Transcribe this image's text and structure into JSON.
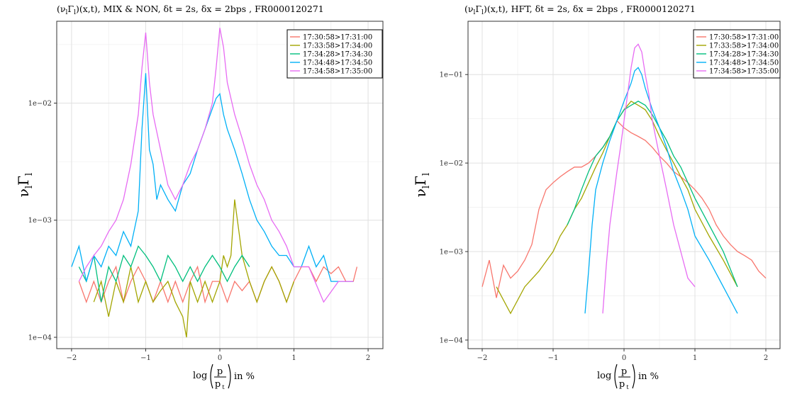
{
  "chart_data": [
    {
      "type": "line",
      "title": "(ν",
      "title_sub": "l",
      "title_mid": "Γ",
      "title_sub2": "l",
      "title_rest": ")(x,t), MIX & NON, δt = 2s, δx = 2bps , FR0000120271",
      "ylabel_main": "ν",
      "ylabel_sub": "l",
      "ylabel_mid": "Γ",
      "ylabel_sub2": "l",
      "xlabel_log": "log",
      "xlabel_num": "p",
      "xlabel_den": "p",
      "xlabel_den_sub": "t",
      "xlabel_unit": "in %",
      "y_scale": "log",
      "xlim": [
        -2.2,
        2.2
      ],
      "ylim": [
        8e-05,
        0.05
      ],
      "x_ticks": [
        -2,
        -1,
        0,
        1,
        2
      ],
      "x_tick_labels": [
        "−2",
        "−1",
        "0",
        "1",
        "2"
      ],
      "y_ticks": [
        0.0001,
        0.001,
        0.01,
        0.1
      ],
      "y_tick_labels": [
        "1e−04",
        "1e−03",
        "1e−02",
        "1e−01"
      ],
      "grid": true,
      "legend_position": "top-right",
      "series": [
        {
          "name": "17:30:58>17:31:00",
          "color": "#F8766D",
          "x": [
            -1.9,
            -1.8,
            -1.7,
            -1.6,
            -1.5,
            -1.4,
            -1.3,
            -1.2,
            -1.1,
            -1.0,
            -0.9,
            -0.8,
            -0.7,
            -0.6,
            -0.5,
            -0.4,
            -0.3,
            -0.2,
            -0.1,
            0.0,
            0.1,
            0.2,
            0.3,
            0.4,
            0.5,
            0.6,
            0.7,
            0.8,
            0.9,
            1.0,
            1.1,
            1.2,
            1.3,
            1.4,
            1.5,
            1.6,
            1.7,
            1.8,
            1.85
          ],
          "y": [
            0.0003,
            0.0002,
            0.0003,
            0.0002,
            0.0003,
            0.0004,
            0.0002,
            0.0003,
            0.0004,
            0.0003,
            0.0002,
            0.0003,
            0.0002,
            0.0003,
            0.0002,
            0.0003,
            0.0004,
            0.0002,
            0.0003,
            0.0003,
            0.0002,
            0.0003,
            0.00025,
            0.0003,
            0.0002,
            0.0003,
            0.0004,
            0.0003,
            0.0002,
            0.0003,
            0.0004,
            0.0004,
            0.0003,
            0.0004,
            0.00035,
            0.0004,
            0.0003,
            0.0003,
            0.0004
          ]
        },
        {
          "name": "17:33:58>17:34:00",
          "color": "#A3A500",
          "x": [
            -1.7,
            -1.6,
            -1.5,
            -1.4,
            -1.3,
            -1.2,
            -1.1,
            -1.0,
            -0.9,
            -0.8,
            -0.7,
            -0.6,
            -0.5,
            -0.45,
            -0.4,
            -0.3,
            -0.2,
            -0.1,
            0.0,
            0.05,
            0.1,
            0.15,
            0.2,
            0.3,
            0.4,
            0.5,
            0.6,
            0.7,
            0.8,
            0.9,
            1.0
          ],
          "y": [
            0.0002,
            0.0003,
            0.00015,
            0.0003,
            0.0002,
            0.0004,
            0.0002,
            0.0003,
            0.0002,
            0.00025,
            0.0003,
            0.0002,
            0.00015,
            0.0001,
            0.0003,
            0.0002,
            0.0003,
            0.0002,
            0.0003,
            0.0005,
            0.0004,
            0.0005,
            0.0015,
            0.0005,
            0.0003,
            0.0002,
            0.0003,
            0.0004,
            0.0003,
            0.0002,
            0.0003
          ]
        },
        {
          "name": "17:34:28>17:34:30",
          "color": "#00BF7D",
          "x": [
            -1.9,
            -1.8,
            -1.7,
            -1.6,
            -1.5,
            -1.4,
            -1.3,
            -1.2,
            -1.1,
            -1.0,
            -0.9,
            -0.8,
            -0.7,
            -0.6,
            -0.5,
            -0.4,
            -0.3,
            -0.2,
            -0.1,
            0.0,
            0.1,
            0.2,
            0.3,
            0.4
          ],
          "y": [
            0.0004,
            0.0003,
            0.0005,
            0.0002,
            0.0004,
            0.0003,
            0.0005,
            0.0004,
            0.0006,
            0.0005,
            0.0004,
            0.0003,
            0.0005,
            0.0004,
            0.0003,
            0.0004,
            0.0003,
            0.0004,
            0.0005,
            0.0004,
            0.0003,
            0.0004,
            0.0005,
            0.0004
          ]
        },
        {
          "name": "17:34:48>17:34:50",
          "color": "#00B0F6",
          "x": [
            -2.0,
            -1.9,
            -1.8,
            -1.7,
            -1.6,
            -1.5,
            -1.4,
            -1.3,
            -1.2,
            -1.1,
            -1.05,
            -1.0,
            -0.95,
            -0.9,
            -0.85,
            -0.8,
            -0.7,
            -0.6,
            -0.5,
            -0.4,
            -0.3,
            -0.2,
            -0.1,
            -0.05,
            0.0,
            0.05,
            0.1,
            0.2,
            0.3,
            0.4,
            0.5,
            0.6,
            0.7,
            0.8,
            0.9,
            1.0,
            1.1,
            1.2,
            1.3,
            1.4,
            1.5,
            1.6,
            1.7,
            1.8
          ],
          "y": [
            0.0004,
            0.0006,
            0.0003,
            0.0005,
            0.0004,
            0.0006,
            0.0005,
            0.0008,
            0.0006,
            0.0012,
            0.006,
            0.018,
            0.004,
            0.003,
            0.0015,
            0.002,
            0.0015,
            0.0012,
            0.002,
            0.0025,
            0.004,
            0.006,
            0.009,
            0.011,
            0.012,
            0.008,
            0.006,
            0.004,
            0.0025,
            0.0015,
            0.001,
            0.0008,
            0.0006,
            0.0005,
            0.0005,
            0.0004,
            0.0004,
            0.0006,
            0.0004,
            0.0005,
            0.0003,
            0.0003,
            0.0003,
            0.0003
          ]
        },
        {
          "name": "17:34:58>17:35:00",
          "color": "#E76BF3",
          "x": [
            -1.9,
            -1.8,
            -1.7,
            -1.6,
            -1.5,
            -1.4,
            -1.3,
            -1.2,
            -1.1,
            -1.05,
            -1.0,
            -0.95,
            -0.9,
            -0.8,
            -0.7,
            -0.6,
            -0.5,
            -0.4,
            -0.3,
            -0.2,
            -0.1,
            -0.05,
            0.0,
            0.05,
            0.1,
            0.2,
            0.3,
            0.4,
            0.5,
            0.6,
            0.7,
            0.8,
            0.9,
            1.0,
            1.2,
            1.4,
            1.6,
            1.8
          ],
          "y": [
            0.0003,
            0.0004,
            0.0005,
            0.0006,
            0.0008,
            0.001,
            0.0015,
            0.003,
            0.008,
            0.02,
            0.04,
            0.015,
            0.008,
            0.004,
            0.002,
            0.0015,
            0.002,
            0.003,
            0.004,
            0.006,
            0.01,
            0.02,
            0.044,
            0.03,
            0.015,
            0.008,
            0.005,
            0.003,
            0.002,
            0.0015,
            0.001,
            0.0008,
            0.0006,
            0.0004,
            0.0004,
            0.0002,
            0.0003,
            0.0003
          ]
        }
      ]
    },
    {
      "type": "line",
      "title": "(ν",
      "title_sub": "l",
      "title_mid": "Γ",
      "title_sub2": "l",
      "title_rest": ")(x,t), HFT, δt = 2s, δx = 2bps , FR0000120271",
      "ylabel_main": "ν",
      "ylabel_sub": "l",
      "ylabel_mid": "Γ",
      "ylabel_sub2": "l",
      "xlabel_log": "log",
      "xlabel_num": "p",
      "xlabel_den": "p",
      "xlabel_den_sub": "t",
      "xlabel_unit": "in %",
      "y_scale": "log",
      "xlim": [
        -2.2,
        2.2
      ],
      "ylim": [
        8e-05,
        0.4
      ],
      "x_ticks": [
        -2,
        -1,
        0,
        1,
        2
      ],
      "x_tick_labels": [
        "−2",
        "−1",
        "0",
        "1",
        "2"
      ],
      "y_ticks": [
        0.0001,
        0.001,
        0.01,
        0.1
      ],
      "y_tick_labels": [
        "1e−04",
        "1e−03",
        "1e−02",
        "1e−01"
      ],
      "grid": true,
      "legend_position": "top-right",
      "series": [
        {
          "name": "17:30:58>17:31:00",
          "color": "#F8766D",
          "x": [
            -2.0,
            -1.9,
            -1.8,
            -1.7,
            -1.6,
            -1.5,
            -1.4,
            -1.3,
            -1.2,
            -1.1,
            -1.0,
            -0.9,
            -0.8,
            -0.7,
            -0.6,
            -0.5,
            -0.4,
            -0.3,
            -0.2,
            -0.1,
            0.0,
            0.1,
            0.2,
            0.3,
            0.4,
            0.5,
            0.6,
            0.7,
            0.8,
            0.9,
            1.0,
            1.1,
            1.2,
            1.3,
            1.4,
            1.5,
            1.6,
            1.7,
            1.8,
            1.9,
            2.0
          ],
          "y": [
            0.0004,
            0.0008,
            0.0003,
            0.0007,
            0.0005,
            0.0006,
            0.0008,
            0.0012,
            0.003,
            0.005,
            0.006,
            0.007,
            0.008,
            0.009,
            0.009,
            0.01,
            0.012,
            0.015,
            0.02,
            0.03,
            0.025,
            0.022,
            0.02,
            0.018,
            0.015,
            0.012,
            0.01,
            0.008,
            0.007,
            0.006,
            0.005,
            0.004,
            0.003,
            0.002,
            0.0015,
            0.0012,
            0.001,
            0.0009,
            0.0008,
            0.0006,
            0.0005
          ]
        },
        {
          "name": "17:33:58>17:34:00",
          "color": "#A3A500",
          "x": [
            -1.8,
            -1.6,
            -1.4,
            -1.2,
            -1.0,
            -0.9,
            -0.8,
            -0.7,
            -0.6,
            -0.5,
            -0.4,
            -0.3,
            -0.2,
            -0.1,
            0.0,
            0.1,
            0.2,
            0.3,
            0.4,
            0.5,
            0.6,
            0.7,
            0.8,
            0.9,
            1.0,
            1.2,
            1.4,
            1.6
          ],
          "y": [
            0.0004,
            0.0002,
            0.0004,
            0.0006,
            0.001,
            0.0015,
            0.002,
            0.003,
            0.004,
            0.006,
            0.009,
            0.013,
            0.02,
            0.03,
            0.04,
            0.05,
            0.045,
            0.04,
            0.03,
            0.02,
            0.014,
            0.01,
            0.007,
            0.005,
            0.003,
            0.0015,
            0.0008,
            0.0004
          ]
        },
        {
          "name": "17:34:28>17:34:30",
          "color": "#00BF7D",
          "x": [
            -0.8,
            -0.7,
            -0.6,
            -0.5,
            -0.4,
            -0.3,
            -0.2,
            -0.1,
            0.0,
            0.1,
            0.2,
            0.3,
            0.4,
            0.5,
            0.6,
            0.7,
            0.8,
            0.9,
            1.0,
            1.2,
            1.4,
            1.6
          ],
          "y": [
            0.002,
            0.003,
            0.005,
            0.008,
            0.012,
            0.015,
            0.02,
            0.03,
            0.04,
            0.045,
            0.05,
            0.045,
            0.035,
            0.025,
            0.018,
            0.012,
            0.009,
            0.006,
            0.004,
            0.002,
            0.001,
            0.0004
          ]
        },
        {
          "name": "17:34:48>17:34:50",
          "color": "#00B0F6",
          "x": [
            -0.55,
            -0.5,
            -0.45,
            -0.4,
            -0.3,
            -0.2,
            -0.1,
            0.0,
            0.1,
            0.15,
            0.2,
            0.25,
            0.3,
            0.4,
            0.5,
            0.6,
            0.7,
            0.8,
            0.9,
            1.0,
            1.2,
            1.4,
            1.6
          ],
          "y": [
            0.0002,
            0.0006,
            0.002,
            0.005,
            0.01,
            0.018,
            0.03,
            0.05,
            0.08,
            0.11,
            0.12,
            0.1,
            0.07,
            0.04,
            0.025,
            0.015,
            0.008,
            0.005,
            0.003,
            0.0015,
            0.0008,
            0.0004,
            0.0002
          ]
        },
        {
          "name": "17:34:58>17:35:00",
          "color": "#E76BF3",
          "x": [
            -0.3,
            -0.25,
            -0.2,
            -0.15,
            -0.1,
            -0.05,
            0.0,
            0.05,
            0.1,
            0.15,
            0.2,
            0.25,
            0.3,
            0.35,
            0.4,
            0.5,
            0.6,
            0.7,
            0.8,
            0.9,
            1.0
          ],
          "y": [
            0.0002,
            0.0007,
            0.002,
            0.004,
            0.008,
            0.015,
            0.03,
            0.06,
            0.12,
            0.2,
            0.22,
            0.18,
            0.1,
            0.06,
            0.03,
            0.012,
            0.005,
            0.002,
            0.001,
            0.0005,
            0.0004
          ]
        }
      ]
    }
  ]
}
